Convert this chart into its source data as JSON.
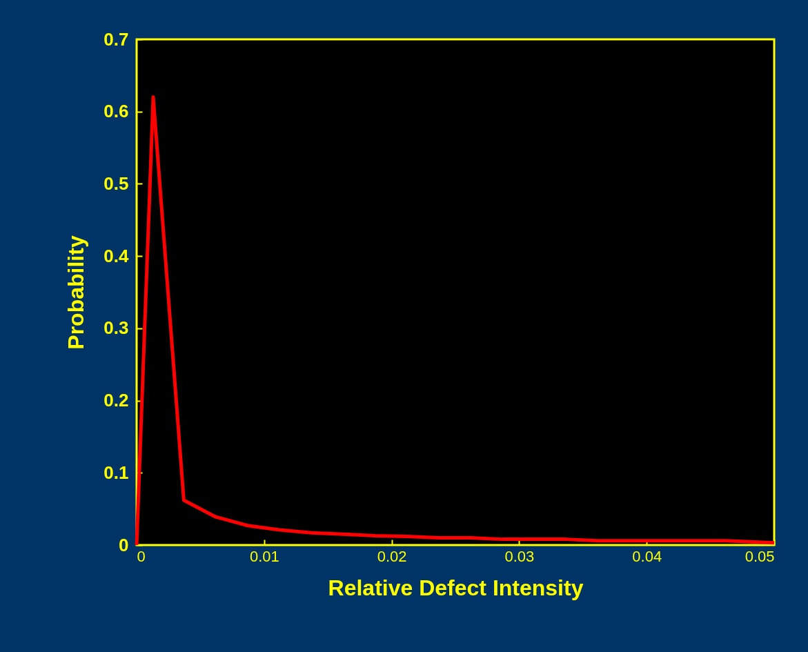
{
  "chart_data": {
    "type": "line",
    "xlabel": "Relative Defect Intensity",
    "ylabel": "Probability",
    "x": [
      0,
      0.0013,
      0.0037,
      0.0062,
      0.0087,
      0.0112,
      0.0137,
      0.0162,
      0.0187,
      0.0212,
      0.0237,
      0.0262,
      0.0287,
      0.0312,
      0.0337,
      0.0362,
      0.0387,
      0.0412,
      0.0437,
      0.0462,
      0.05
    ],
    "series": [
      {
        "color": "#ff0000",
        "values": [
          0,
          0.62,
          0.062,
          0.039,
          0.027,
          0.021,
          0.017,
          0.015,
          0.013,
          0.012,
          0.01,
          0.01,
          0.008,
          0.008,
          0.008,
          0.006,
          0.006,
          0.006,
          0.006,
          0.006,
          0.003
        ]
      }
    ],
    "xlim": [
      0,
      0.05
    ],
    "xticks": [
      0,
      0.01,
      0.02,
      0.03,
      0.04,
      0.05
    ],
    "ylim": [
      0,
      0.7
    ],
    "yticks": [
      0,
      0.1,
      0.2,
      0.3,
      0.4,
      0.5,
      0.6,
      0.7
    ],
    "grid": false,
    "marker": "none",
    "line_style": "solid"
  }
}
